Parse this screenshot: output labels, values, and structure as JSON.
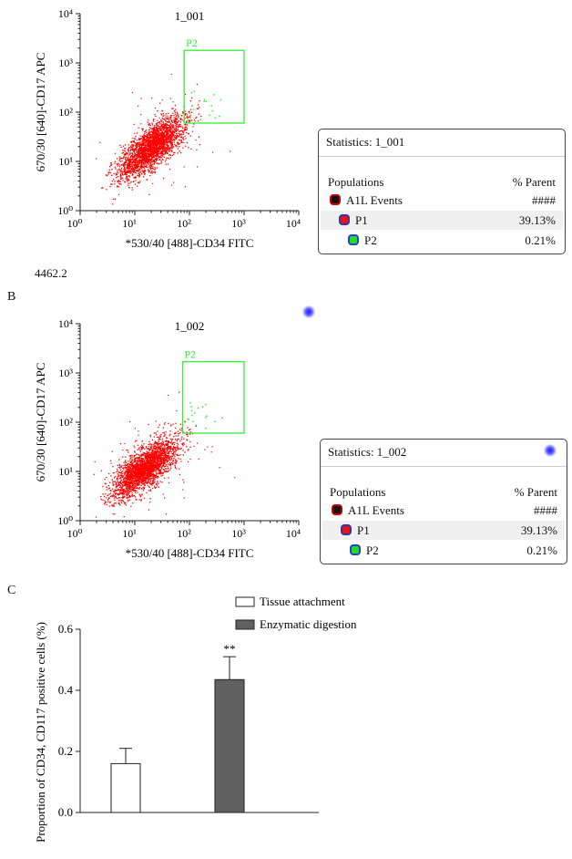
{
  "panels": {
    "A": {
      "plot_title": "1_001",
      "gate_label": "P2",
      "ylabel": "670/30 [640]-CD17 APC",
      "xlabel": "*530/40 [488]-CD34 FITC",
      "stats": {
        "title": "Statistics: 1_001",
        "col_pop": "Populations",
        "col_pct": "% Parent",
        "rows": [
          {
            "name": "A1L Events",
            "pct": "####",
            "fill": "#111111",
            "border": "#cc0000"
          },
          {
            "name": "P1",
            "pct": "39.13%",
            "fill": "#ee1111",
            "border": "#3333aa"
          },
          {
            "name": "P2",
            "pct": "0.21%",
            "fill": "#22dd22",
            "border": "#2244cc"
          }
        ]
      }
    },
    "B": {
      "letter": "B",
      "top_number": "4462.2",
      "plot_title": "1_002",
      "gate_label": "P2",
      "ylabel": "670/30 [640]-CD17 APC",
      "xlabel": "*530/40 [488]-CD34 FITC",
      "stats": {
        "title": "Statistics: 1_002",
        "col_pop": "Populations",
        "col_pct": "% Parent",
        "rows": [
          {
            "name": "A1L Events",
            "pct": "####",
            "fill": "#111111",
            "border": "#cc0000"
          },
          {
            "name": "P1",
            "pct": "39.13%",
            "fill": "#ee1111",
            "border": "#3333aa"
          },
          {
            "name": "P2",
            "pct": "0.21%",
            "fill": "#22dd22",
            "border": "#2244cc"
          }
        ]
      }
    },
    "C": {
      "letter": "C"
    }
  },
  "colors": {
    "events": "#ff0000",
    "gate": "#33ee33",
    "bar_dark": "#606060"
  },
  "chart_data": [
    {
      "type": "scatter",
      "title": "1_001",
      "xlabel": "*530/40 [488]-CD34 FITC",
      "ylabel": "670/30 [640]-CD17 APC",
      "xscale": "log",
      "yscale": "log",
      "xlim": [
        1,
        10000
      ],
      "ylim": [
        1,
        10000
      ],
      "xticks": [
        "10⁰",
        "10¹",
        "10²",
        "10³",
        "10⁴"
      ],
      "yticks": [
        "10⁰",
        "10¹",
        "10²",
        "10³",
        "10⁴"
      ],
      "cloud_center": [
        20,
        20
      ],
      "gate": {
        "name": "P2",
        "x": [
          80,
          1000
        ],
        "y": [
          60,
          1800
        ]
      }
    },
    {
      "type": "scatter",
      "title": "1_002",
      "xlabel": "*530/40 [488]-CD34 FITC",
      "ylabel": "670/30 [640]-CD17 APC",
      "xscale": "log",
      "yscale": "log",
      "xlim": [
        1,
        10000
      ],
      "ylim": [
        1,
        10000
      ],
      "xticks": [
        "10⁰",
        "10¹",
        "10²",
        "10³",
        "10⁴"
      ],
      "yticks": [
        "10⁰",
        "10¹",
        "10²",
        "10³",
        "10⁴"
      ],
      "cloud_center": [
        15,
        12
      ],
      "gate": {
        "name": "P2",
        "x": [
          75,
          1000
        ],
        "y": [
          60,
          1700
        ]
      }
    },
    {
      "type": "bar",
      "ylabel": "Proportion of CD34, CD117 positive cells (%)",
      "ylim": [
        0,
        0.6
      ],
      "yticks": [
        "0.0",
        "0.2",
        "0.4",
        "0.6"
      ],
      "series": [
        {
          "name": "Tissue attachment",
          "value": 0.16,
          "error": 0.05,
          "fill": "#ffffff",
          "annotation": ""
        },
        {
          "name": "Enzymatic digestion",
          "value": 0.435,
          "error": 0.075,
          "fill": "#606060",
          "annotation": "**"
        }
      ],
      "legend": "top"
    }
  ]
}
